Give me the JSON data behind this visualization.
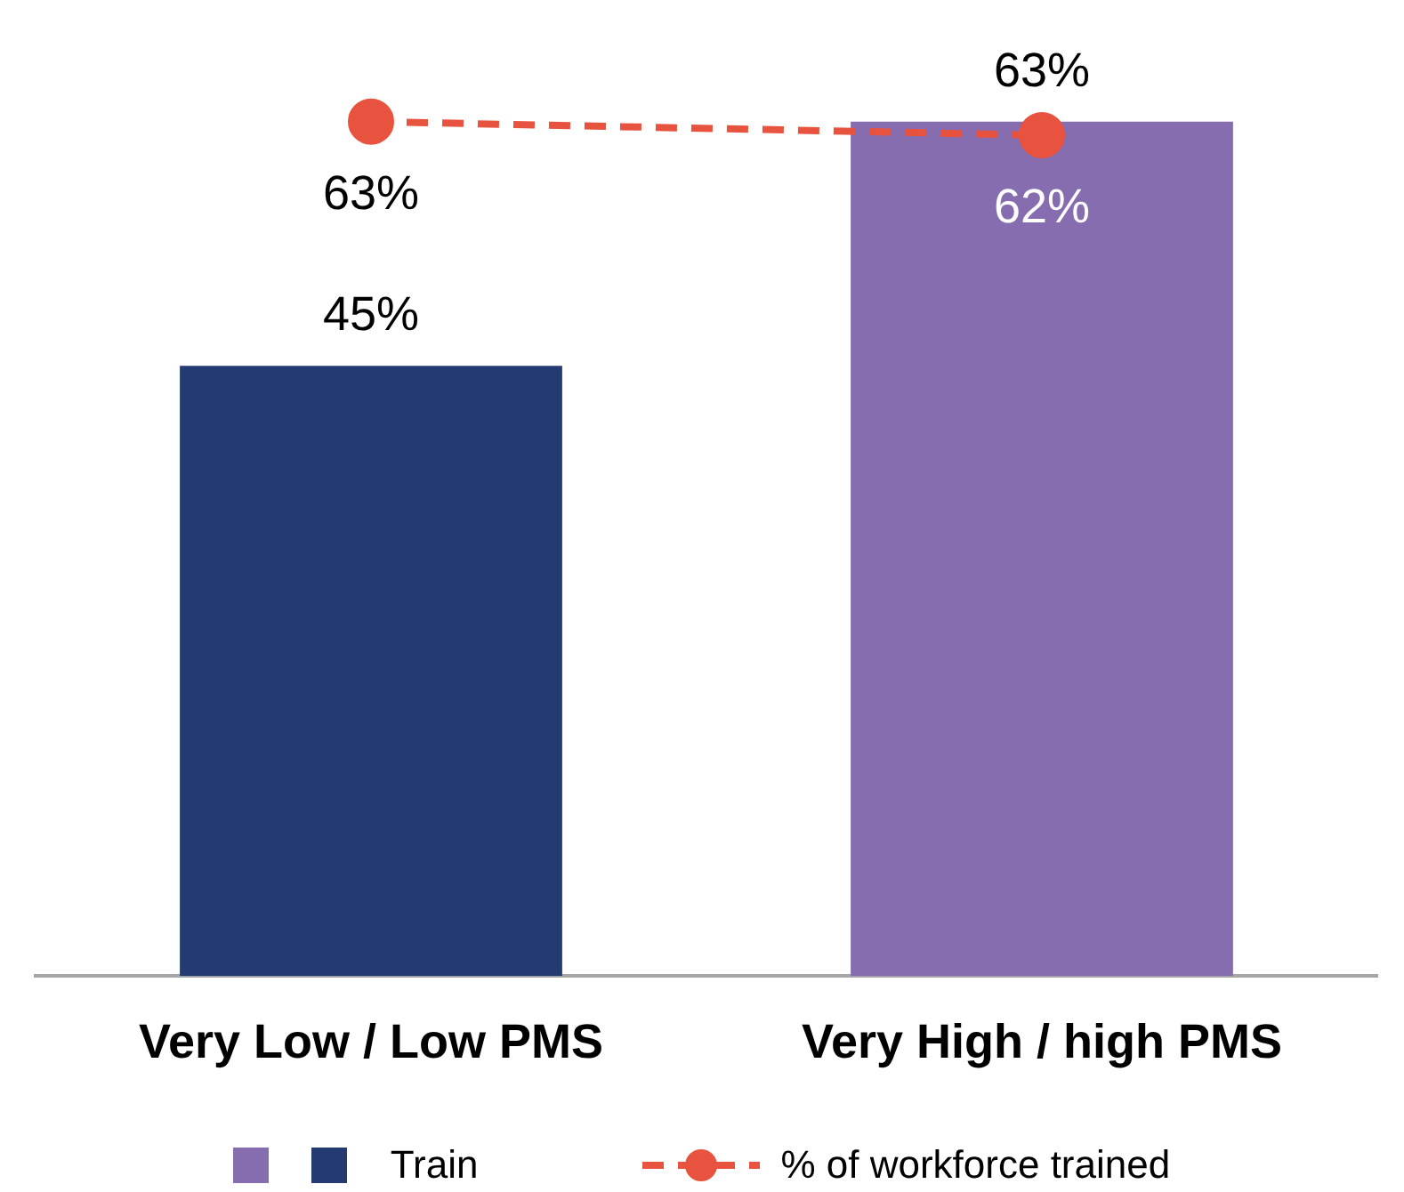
{
  "chart_data": {
    "type": "bar",
    "categories": [
      "Very Low / Low PMS",
      "Very High / high PMS"
    ],
    "series": [
      {
        "name": "Train",
        "colors": [
          "#233a72",
          "#856db0"
        ],
        "values": [
          45,
          63
        ],
        "value_labels": [
          "45%",
          "63%"
        ]
      },
      {
        "name": "% of workforce trained",
        "type": "line",
        "color": "#e8533f",
        "values": [
          63,
          62
        ],
        "value_labels": [
          "63%",
          "62%"
        ],
        "marker": "circle",
        "line_style": "dashed"
      }
    ],
    "grid": false,
    "legend": "bottom"
  }
}
